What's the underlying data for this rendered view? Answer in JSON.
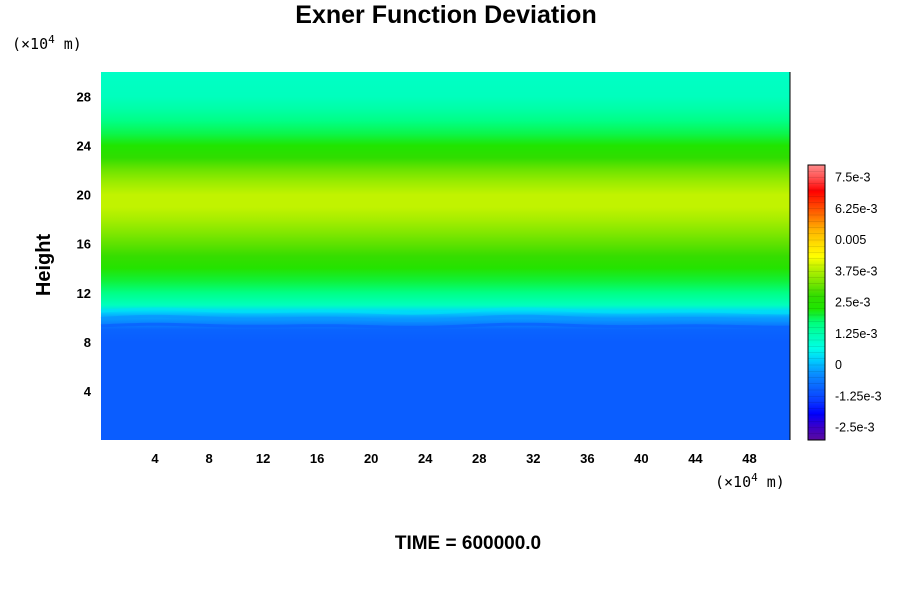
{
  "chart_data": {
    "type": "heatmap",
    "title": "Exner Function Deviation",
    "ylabel": "Height",
    "x_unit_prefix": "(×10",
    "x_unit_exp": "4",
    "x_unit_suffix": " m)",
    "y_unit_prefix": "(×10",
    "y_unit_exp": "4",
    "y_unit_suffix": " m)",
    "xlim": [
      0,
      51
    ],
    "ylim": [
      0,
      30
    ],
    "x_ticks": [
      4,
      8,
      12,
      16,
      20,
      24,
      28,
      32,
      36,
      40,
      44,
      48
    ],
    "y_ticks": [
      4,
      8,
      12,
      16,
      20,
      24,
      28
    ],
    "field_profile": {
      "description_axis": "height",
      "height": [
        0,
        8.0,
        9.0,
        9.5,
        10.0,
        10.5,
        11.0,
        12.0,
        13.0,
        14.0,
        15.0,
        16.0,
        17.0,
        18.0,
        19.0,
        20.0,
        21.0,
        22.0,
        23.0,
        24.0,
        25.0,
        26.0,
        27.0,
        28.0,
        30.0
      ],
      "value": [
        -0.001,
        -0.001,
        -0.0009,
        -0.0005,
        -0.0002,
        0.0003,
        0.0011,
        0.0016,
        0.002,
        0.0024,
        0.0028,
        0.0031,
        0.0034,
        0.0037,
        0.0039,
        0.0039,
        0.0036,
        0.0032,
        0.0027,
        0.0023,
        0.0019,
        0.0016,
        0.0013,
        0.0011,
        0.001
      ]
    },
    "colorbar": {
      "min": -0.003,
      "max": 0.008,
      "levels": 44,
      "tick_values": [
        -0.0025,
        -0.00125,
        0,
        0.00125,
        0.0025,
        0.00375,
        0.005,
        0.00625,
        0.0075
      ],
      "tick_labels": [
        "-2.5e-3",
        "-1.25e-3",
        "0",
        "1.25e-3",
        "2.5e-3",
        "3.75e-3",
        "0.005",
        "6.25e-3",
        "7.5e-3"
      ],
      "colors": [
        "#5a0a9e",
        "#3a00c8",
        "#0000ff",
        "#0a3cff",
        "#0a64ff",
        "#0a8cff",
        "#00c8ff",
        "#00ffe6",
        "#00ffb4",
        "#00ff78",
        "#1ee600",
        "#32dc00",
        "#78e600",
        "#b4f000",
        "#ffff00",
        "#ffdc00",
        "#ffb400",
        "#ff7800",
        "#ff3c00",
        "#ff0000",
        "#ff5050",
        "#ff8c8c"
      ]
    }
  },
  "footer": {
    "time_label": "TIME = 600000.0"
  }
}
